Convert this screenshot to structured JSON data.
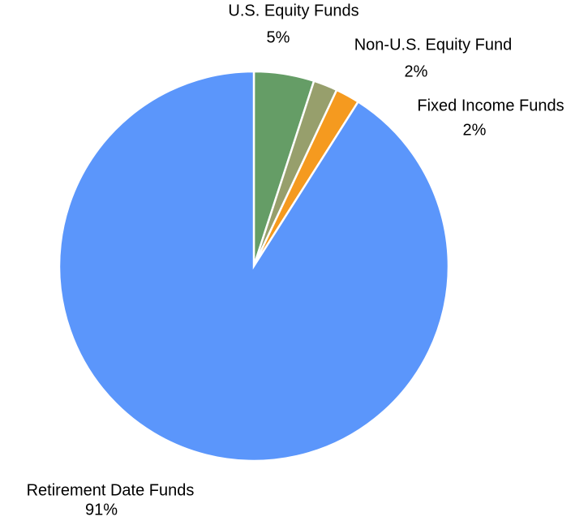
{
  "chart_data": {
    "type": "pie",
    "categories": [
      "U.S. Equity Funds",
      "Non-U.S. Equity Fund",
      "Fixed Income Funds",
      "Retirement Date Funds"
    ],
    "values": [
      5,
      2,
      2,
      91
    ],
    "value_labels": [
      "5%",
      "2%",
      "2%",
      "91%"
    ],
    "colors": [
      "#659d66",
      "#979f6c",
      "#f59a1f",
      "#5b96fb"
    ]
  }
}
